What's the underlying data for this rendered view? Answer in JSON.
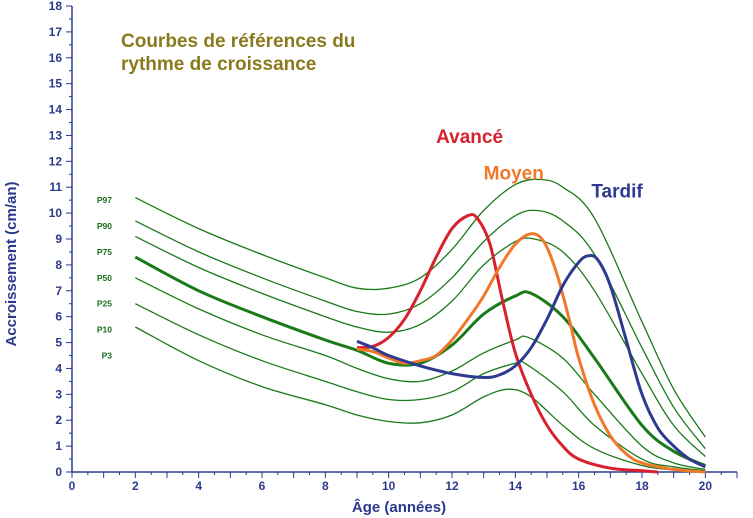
{
  "chart_data": {
    "type": "line",
    "title_lines": [
      "Courbes de références du",
      "rythme de croissance"
    ],
    "xlabel": "Âge (années)",
    "ylabel": "Accroissement (cm/an)",
    "xlim": [
      0,
      21
    ],
    "ylim": [
      0,
      18
    ],
    "x_ticks": [
      0,
      2,
      4,
      6,
      8,
      10,
      12,
      14,
      16,
      18,
      20
    ],
    "y_ticks": [
      0,
      1,
      2,
      3,
      4,
      5,
      6,
      7,
      8,
      9,
      10,
      11,
      12,
      13,
      14,
      15,
      16,
      17,
      18
    ],
    "grid": false,
    "percentiles": [
      {
        "name": "P97",
        "label_y": 10.5,
        "points": [
          [
            2,
            10.6
          ],
          [
            4,
            9.4
          ],
          [
            6,
            8.4
          ],
          [
            8,
            7.5
          ],
          [
            9,
            7.1
          ],
          [
            10,
            7.1
          ],
          [
            11,
            7.5
          ],
          [
            12,
            8.6
          ],
          [
            13,
            10.1
          ],
          [
            14,
            11.1
          ],
          [
            14.8,
            11.3
          ],
          [
            15.5,
            11.0
          ],
          [
            16.5,
            9.8
          ],
          [
            18,
            5.8
          ],
          [
            19,
            3.2
          ],
          [
            20,
            1.35
          ]
        ]
      },
      {
        "name": "P90",
        "label_y": 9.5,
        "points": [
          [
            2,
            9.7
          ],
          [
            4,
            8.5
          ],
          [
            6,
            7.5
          ],
          [
            8,
            6.6
          ],
          [
            9,
            6.2
          ],
          [
            10,
            6.1
          ],
          [
            11,
            6.5
          ],
          [
            12,
            7.5
          ],
          [
            13,
            8.9
          ],
          [
            14,
            9.9
          ],
          [
            14.7,
            10.1
          ],
          [
            15.5,
            9.7
          ],
          [
            16.5,
            8.4
          ],
          [
            18,
            4.8
          ],
          [
            19,
            2.5
          ],
          [
            20,
            0.9
          ]
        ]
      },
      {
        "name": "P75",
        "label_y": 8.5,
        "points": [
          [
            2,
            9.1
          ],
          [
            4,
            7.9
          ],
          [
            6,
            6.9
          ],
          [
            8,
            6.0
          ],
          [
            9,
            5.6
          ],
          [
            10,
            5.4
          ],
          [
            11,
            5.7
          ],
          [
            12,
            6.6
          ],
          [
            13,
            8.0
          ],
          [
            14,
            8.9
          ],
          [
            14.6,
            9.0
          ],
          [
            15.5,
            8.5
          ],
          [
            16.5,
            7.0
          ],
          [
            18,
            3.8
          ],
          [
            19,
            1.8
          ],
          [
            20,
            0.6
          ]
        ]
      },
      {
        "name": "P50",
        "label_y": 7.5,
        "bold": true,
        "points": [
          [
            2,
            8.3
          ],
          [
            4,
            7.0
          ],
          [
            6,
            6.0
          ],
          [
            8,
            5.1
          ],
          [
            9,
            4.7
          ],
          [
            10,
            4.2
          ],
          [
            11,
            4.2
          ],
          [
            12,
            4.9
          ],
          [
            13,
            6.1
          ],
          [
            14,
            6.8
          ],
          [
            14.5,
            6.9
          ],
          [
            15.5,
            6.0
          ],
          [
            16.5,
            4.4
          ],
          [
            18,
            1.8
          ],
          [
            19,
            0.8
          ],
          [
            20,
            0.25
          ]
        ]
      },
      {
        "name": "P25",
        "label_y": 6.5,
        "points": [
          [
            2,
            7.5
          ],
          [
            4,
            6.3
          ],
          [
            6,
            5.3
          ],
          [
            8,
            4.5
          ],
          [
            9,
            4.0
          ],
          [
            10,
            3.6
          ],
          [
            11,
            3.5
          ],
          [
            12,
            3.9
          ],
          [
            13,
            4.6
          ],
          [
            14,
            5.1
          ],
          [
            14.4,
            5.2
          ],
          [
            15.5,
            4.4
          ],
          [
            16.5,
            3.0
          ],
          [
            18,
            1.0
          ],
          [
            19,
            0.35
          ],
          [
            20,
            0.1
          ]
        ]
      },
      {
        "name": "P10",
        "label_y": 5.5,
        "points": [
          [
            2,
            6.5
          ],
          [
            4,
            5.3
          ],
          [
            6,
            4.3
          ],
          [
            8,
            3.5
          ],
          [
            9,
            3.1
          ],
          [
            10,
            2.8
          ],
          [
            11,
            2.8
          ],
          [
            12,
            3.1
          ],
          [
            13,
            3.8
          ],
          [
            14,
            4.2
          ],
          [
            14.3,
            4.2
          ],
          [
            15.5,
            3.1
          ],
          [
            16.5,
            1.8
          ],
          [
            18,
            0.5
          ],
          [
            19,
            0.2
          ],
          [
            20,
            0.05
          ]
        ]
      },
      {
        "name": "P3",
        "label_y": 4.5,
        "points": [
          [
            2,
            5.6
          ],
          [
            4,
            4.3
          ],
          [
            6,
            3.3
          ],
          [
            8,
            2.6
          ],
          [
            9,
            2.2
          ],
          [
            10,
            1.95
          ],
          [
            11,
            1.9
          ],
          [
            12,
            2.2
          ],
          [
            13,
            2.9
          ],
          [
            13.8,
            3.2
          ],
          [
            14.5,
            2.9
          ],
          [
            15.5,
            1.8
          ],
          [
            16.5,
            0.9
          ],
          [
            18,
            0.25
          ],
          [
            19,
            0.08
          ],
          [
            20,
            0.0
          ]
        ]
      }
    ],
    "series": [
      {
        "name": "Avancé",
        "color": "#d7212d",
        "label_pos": [
          11.5,
          12.7
        ],
        "points": [
          [
            9,
            4.8
          ],
          [
            9.5,
            4.85
          ],
          [
            10,
            5.2
          ],
          [
            10.5,
            5.9
          ],
          [
            11,
            7.0
          ],
          [
            11.5,
            8.3
          ],
          [
            12,
            9.4
          ],
          [
            12.5,
            9.9
          ],
          [
            12.8,
            9.8
          ],
          [
            13.2,
            8.8
          ],
          [
            13.6,
            6.6
          ],
          [
            14,
            4.6
          ],
          [
            14.5,
            3.0
          ],
          [
            15,
            1.8
          ],
          [
            15.5,
            1.0
          ],
          [
            16,
            0.5
          ],
          [
            17,
            0.15
          ],
          [
            18,
            0.05
          ],
          [
            18.5,
            0.0
          ]
        ]
      },
      {
        "name": "Moyen",
        "color": "#f0782a",
        "label_pos": [
          13.0,
          11.3
        ],
        "points": [
          [
            9,
            4.75
          ],
          [
            9.5,
            4.65
          ],
          [
            10,
            4.4
          ],
          [
            10.5,
            4.2
          ],
          [
            11,
            4.3
          ],
          [
            11.5,
            4.5
          ],
          [
            12,
            5.1
          ],
          [
            12.5,
            5.9
          ],
          [
            13,
            6.8
          ],
          [
            13.5,
            7.9
          ],
          [
            14,
            8.8
          ],
          [
            14.5,
            9.2
          ],
          [
            14.9,
            8.9
          ],
          [
            15.3,
            7.7
          ],
          [
            15.7,
            5.9
          ],
          [
            16,
            4.4
          ],
          [
            16.5,
            2.6
          ],
          [
            17,
            1.4
          ],
          [
            17.5,
            0.7
          ],
          [
            18,
            0.35
          ],
          [
            19,
            0.1
          ],
          [
            20,
            0.0
          ]
        ]
      },
      {
        "name": "Tardif",
        "color": "#2e3a8f",
        "label_pos": [
          16.4,
          10.6
        ],
        "points": [
          [
            9,
            5.05
          ],
          [
            9.5,
            4.8
          ],
          [
            10,
            4.5
          ],
          [
            11,
            4.1
          ],
          [
            12,
            3.8
          ],
          [
            13,
            3.65
          ],
          [
            13.5,
            3.75
          ],
          [
            14,
            4.1
          ],
          [
            14.5,
            4.8
          ],
          [
            15,
            5.9
          ],
          [
            15.5,
            7.2
          ],
          [
            16,
            8.1
          ],
          [
            16.3,
            8.35
          ],
          [
            16.6,
            8.2
          ],
          [
            17,
            7.2
          ],
          [
            17.5,
            5.1
          ],
          [
            18,
            3.0
          ],
          [
            18.5,
            1.7
          ],
          [
            19,
            1.0
          ],
          [
            19.5,
            0.5
          ],
          [
            20,
            0.2
          ]
        ]
      }
    ]
  }
}
